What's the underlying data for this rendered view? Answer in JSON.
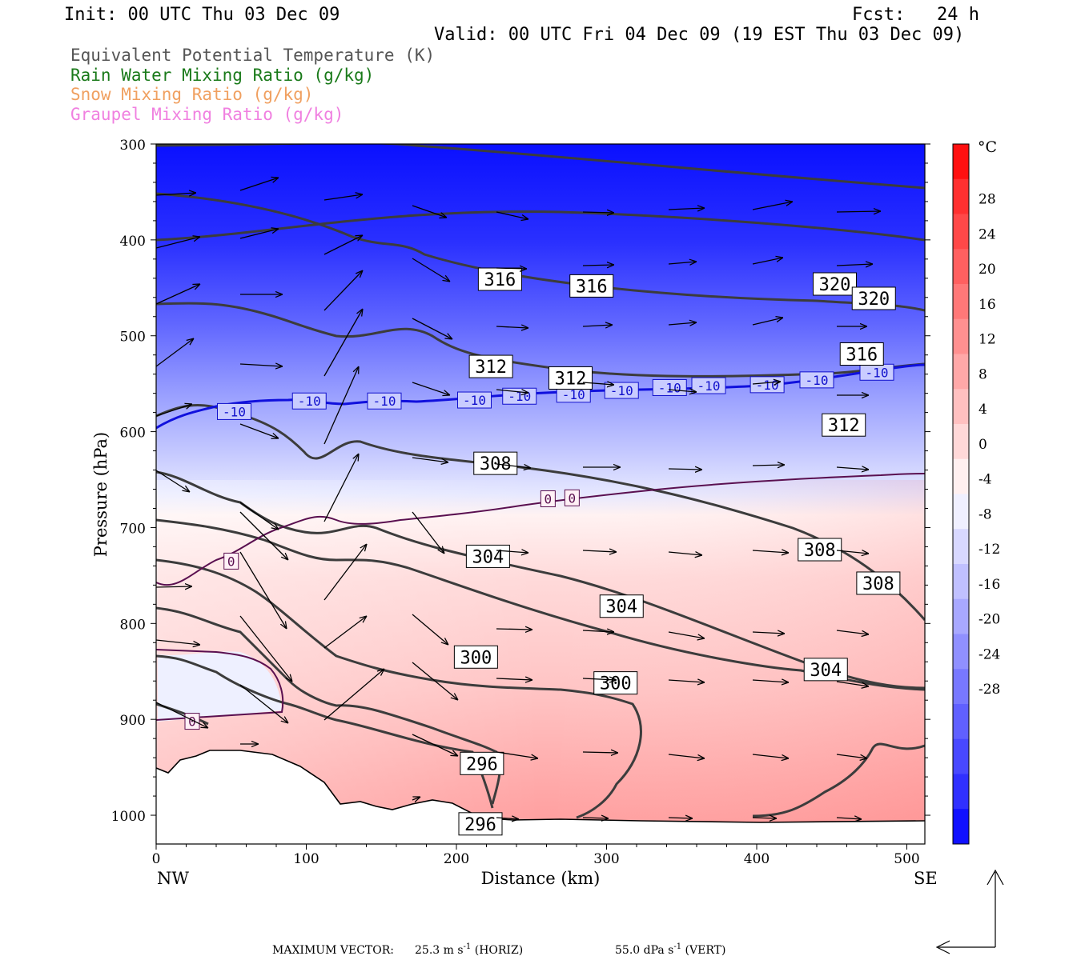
{
  "header": {
    "init": "Init: 00 UTC Thu 03 Dec 09",
    "fcst": "Fcst:   24 h",
    "valid": "Valid: 00 UTC Fri 04 Dec 09 (19 EST Thu 03 Dec 09)"
  },
  "field_legend": [
    {
      "text": "Equivalent Potential Temperature (K)",
      "color": "#555555"
    },
    {
      "text": "Rain Water Mixing Ratio (g/kg)",
      "color": "#1a7a1a"
    },
    {
      "text": "Snow Mixing Ratio (g/kg)",
      "color": "#f0a060"
    },
    {
      "text": "Graupel Mixing Ratio (g/kg)",
      "color": "#f080e0"
    }
  ],
  "footer": {
    "max_vector_label": "MAXIMUM VECTOR:",
    "horiz_value": "25.3 m s",
    "horiz_exp": "-1",
    "horiz_unit": " (HORIZ)",
    "vert_value": "55.0 dPa s",
    "vert_exp": "-1",
    "vert_unit": " (VERT)"
  },
  "chart_data": {
    "type": "cross-section",
    "xlabel": "Distance (km)",
    "ylabel": "Pressure (hPa)",
    "xlim": [
      0,
      512
    ],
    "ylim": [
      1030,
      300
    ],
    "x_ticks": [
      "0",
      "100",
      "200",
      "300",
      "400",
      "500"
    ],
    "y_ticks": [
      "300",
      "400",
      "500",
      "600",
      "700",
      "800",
      "900",
      "1000"
    ],
    "x_end_labels": {
      "left": "NW",
      "right": "SE"
    },
    "colorbar": {
      "unit": "°C",
      "labels": [
        "28",
        "24",
        "20",
        "16",
        "12",
        "8",
        "4",
        "0",
        "-4",
        "-8",
        "-12",
        "-16",
        "-20",
        "-24",
        "-28"
      ],
      "colors_warm_to_cold": [
        "#ff1010",
        "#ff3030",
        "#ff4848",
        "#ff6060",
        "#ff7878",
        "#ff9090",
        "#ffa8a8",
        "#ffc0c0",
        "#ffd8d8",
        "#fff0f0",
        "#f0f0ff",
        "#d8d8ff",
        "#c0c0ff",
        "#a8a8ff",
        "#9090ff",
        "#7878ff",
        "#6060ff",
        "#4848ff",
        "#3030ff",
        "#1010ff"
      ]
    },
    "theta_e_labels": [
      {
        "value": "316",
        "x": 229,
        "p": 441
      },
      {
        "value": "316",
        "x": 290,
        "p": 448
      },
      {
        "value": "320",
        "x": 452,
        "p": 446
      },
      {
        "value": "320",
        "x": 478,
        "p": 461
      },
      {
        "value": "316",
        "x": 470,
        "p": 519
      },
      {
        "value": "312",
        "x": 223,
        "p": 532
      },
      {
        "value": "312",
        "x": 276,
        "p": 544
      },
      {
        "value": "312",
        "x": 458,
        "p": 593
      },
      {
        "value": "308",
        "x": 226,
        "p": 633
      },
      {
        "value": "308",
        "x": 442,
        "p": 723
      },
      {
        "value": "308",
        "x": 481,
        "p": 758
      },
      {
        "value": "304",
        "x": 221,
        "p": 730
      },
      {
        "value": "304",
        "x": 310,
        "p": 782
      },
      {
        "value": "304",
        "x": 446,
        "p": 848
      },
      {
        "value": "300",
        "x": 213,
        "p": 835
      },
      {
        "value": "300",
        "x": 306,
        "p": 862
      },
      {
        "value": "296",
        "x": 217,
        "p": 946
      },
      {
        "value": "296",
        "x": 216,
        "p": 1009
      }
    ],
    "isotherm_labels": [
      {
        "value": "-10",
        "x": 52,
        "p": 579
      },
      {
        "value": "-10",
        "x": 102,
        "p": 568
      },
      {
        "value": "-10",
        "x": 152,
        "p": 568
      },
      {
        "value": "-10",
        "x": 212,
        "p": 567
      },
      {
        "value": "-10",
        "x": 242,
        "p": 563
      },
      {
        "value": "-10",
        "x": 278,
        "p": 561
      },
      {
        "value": "-10",
        "x": 310,
        "p": 557
      },
      {
        "value": "-10",
        "x": 342,
        "p": 554
      },
      {
        "value": "-10",
        "x": 368,
        "p": 552
      },
      {
        "value": "-10",
        "x": 407,
        "p": 551
      },
      {
        "value": "-10",
        "x": 440,
        "p": 546
      },
      {
        "value": "-10",
        "x": 480,
        "p": 538
      },
      {
        "value": "0",
        "x": 261,
        "p": 670
      },
      {
        "value": "0",
        "x": 277,
        "p": 669
      },
      {
        "value": "0",
        "x": 50,
        "p": 735
      },
      {
        "value": "0",
        "x": 24,
        "p": 902
      }
    ]
  }
}
